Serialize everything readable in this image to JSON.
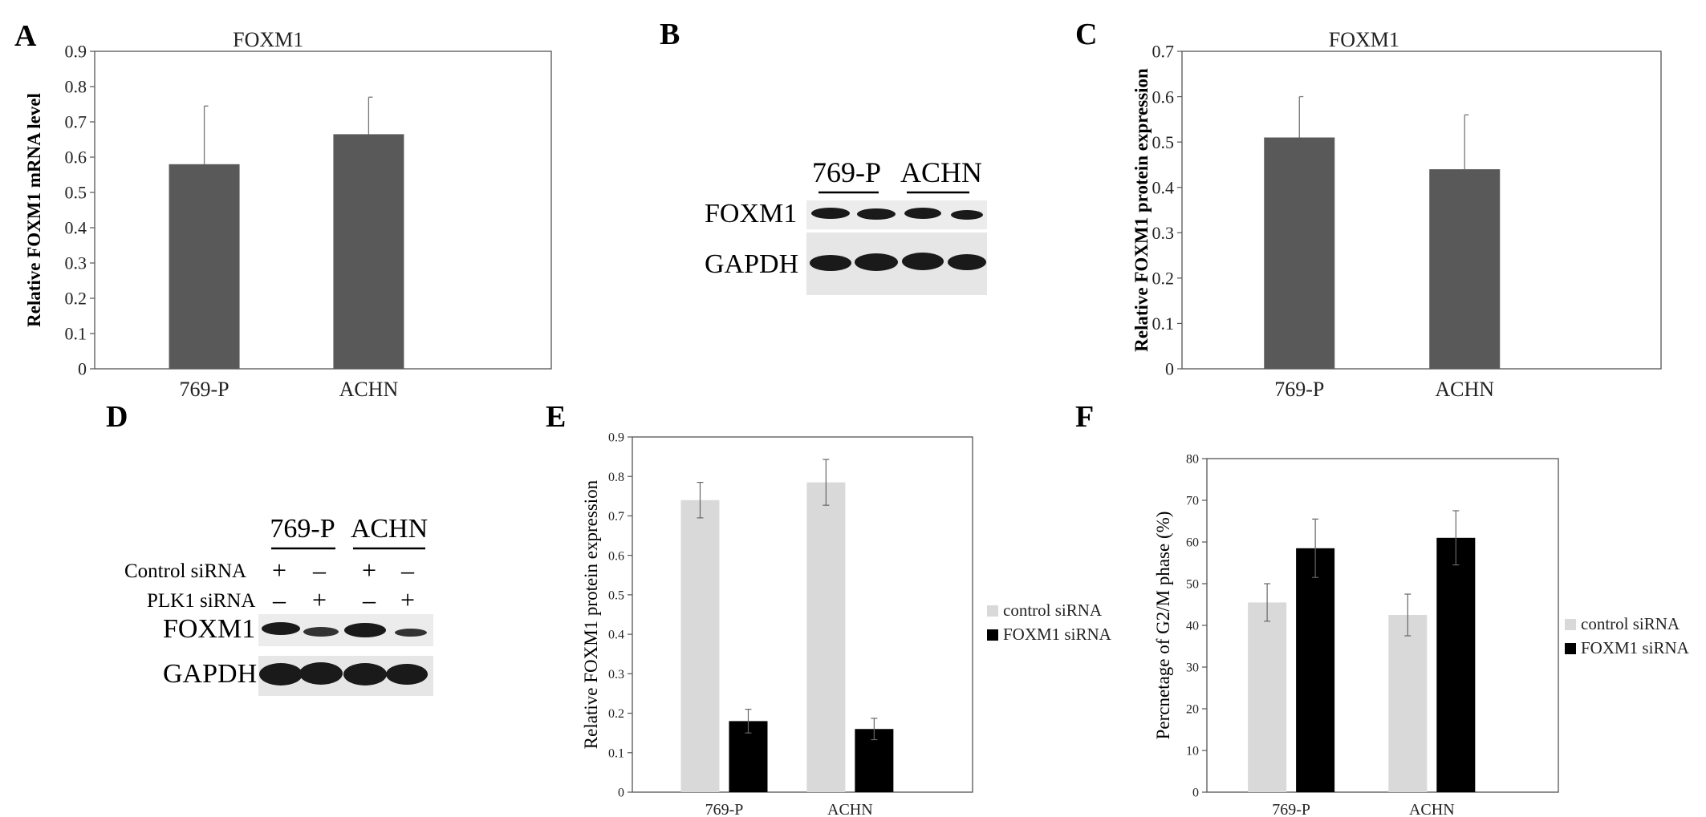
{
  "panels": {
    "A": "A",
    "B": "B",
    "C": "C",
    "D": "D",
    "E": "E",
    "F": "F"
  },
  "blot_b": {
    "groups": [
      "769-P",
      "ACHN"
    ],
    "rows": [
      "FOXM1",
      "GAPDH"
    ]
  },
  "blot_d": {
    "groups": [
      "769-P",
      "ACHN"
    ],
    "conditions": [
      {
        "label": "Control siRNA",
        "marks": [
          "+",
          "–",
          "+",
          "–"
        ]
      },
      {
        "label": "PLK1 siRNA",
        "marks": [
          "–",
          "+",
          "–",
          "+"
        ]
      }
    ],
    "rows": [
      "FOXM1",
      "GAPDH"
    ]
  },
  "chart_data": [
    {
      "panel": "A",
      "type": "bar",
      "title": "FOXM1",
      "ylabel": "Relative FOXM1 mRNA level",
      "xlabel": "",
      "categories": [
        "769-P",
        "ACHN"
      ],
      "series": [
        {
          "values": [
            0.58,
            0.665
          ],
          "errors": [
            0.165,
            0.105
          ],
          "color": "#595959"
        }
      ],
      "ylim": [
        0,
        0.9
      ],
      "yticks": [
        "0",
        "0.1",
        "0.2",
        "0.3",
        "0.4",
        "0.5",
        "0.6",
        "0.7",
        "0.8",
        "0.9"
      ],
      "grid": false
    },
    {
      "panel": "C",
      "type": "bar",
      "title": "FOXM1",
      "ylabel": "Relative FOXM1 protein expression",
      "xlabel": "",
      "categories": [
        "769-P",
        "ACHN"
      ],
      "series": [
        {
          "values": [
            0.51,
            0.44
          ],
          "errors": [
            0.09,
            0.12
          ],
          "color": "#595959"
        }
      ],
      "ylim": [
        0,
        0.7
      ],
      "yticks": [
        "0",
        "0.1",
        "0.2",
        "0.3",
        "0.4",
        "0.5",
        "0.6",
        "0.7"
      ],
      "grid": false
    },
    {
      "panel": "E",
      "type": "bar",
      "title": "",
      "ylabel": "Relative FOXM1 protein expression",
      "xlabel": "",
      "categories": [
        "769-P",
        "ACHN"
      ],
      "series": [
        {
          "name": "control siRNA",
          "values": [
            0.74,
            0.785
          ],
          "errors": [
            0.045,
            0.058
          ],
          "color": "#d9d9d9"
        },
        {
          "name": "FOXM1 siRNA",
          "values": [
            0.18,
            0.16
          ],
          "errors": [
            0.03,
            0.027
          ],
          "color": "#000000"
        }
      ],
      "ylim": [
        0,
        0.9
      ],
      "yticks": [
        "0",
        "0.1",
        "0.2",
        "0.3",
        "0.4",
        "0.5",
        "0.6",
        "0.7",
        "0.8",
        "0.9"
      ],
      "legend": "right",
      "grid": false
    },
    {
      "panel": "F",
      "type": "bar",
      "title": "",
      "ylabel": "Percnetage of G2/M phase (%)",
      "xlabel": "",
      "categories": [
        "769-P",
        "ACHN"
      ],
      "series": [
        {
          "name": "control siRNA",
          "values": [
            45.5,
            42.5
          ],
          "errors": [
            4.5,
            5.0
          ],
          "color": "#d9d9d9"
        },
        {
          "name": "FOXM1 siRNA",
          "values": [
            58.5,
            61.0
          ],
          "errors": [
            7.0,
            6.5
          ],
          "color": "#000000"
        }
      ],
      "ylim": [
        0,
        80
      ],
      "yticks": [
        "0",
        "10",
        "20",
        "30",
        "40",
        "50",
        "60",
        "70",
        "80"
      ],
      "legend": "right",
      "grid": false
    }
  ]
}
